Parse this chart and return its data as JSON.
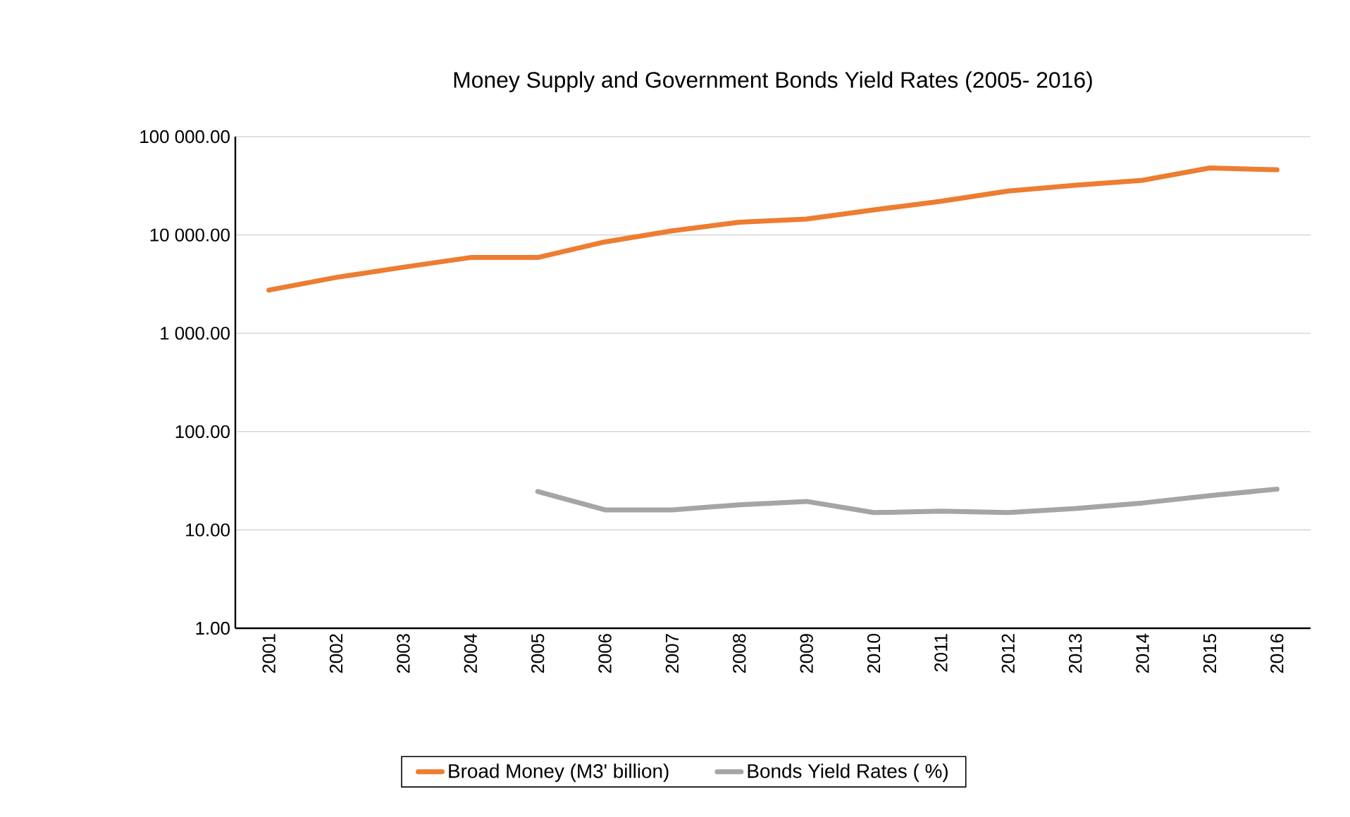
{
  "chart_data": {
    "type": "line",
    "title": "Money Supply and Government Bonds Yield Rates (2005- 2016)",
    "categories": [
      "2001",
      "2002",
      "2003",
      "2004",
      "2005",
      "2006",
      "2007",
      "2008",
      "2009",
      "2010",
      "2011",
      "2012",
      "2013",
      "2014",
      "2015",
      "2016"
    ],
    "series": [
      {
        "name": "Broad Money (M3' billion)",
        "color": "#ed7d31",
        "values": [
          2750,
          3700,
          4700,
          5900,
          5900,
          8500,
          11000,
          13500,
          14500,
          18000,
          22000,
          28000,
          32000,
          36000,
          48000,
          46000
        ]
      },
      {
        "name": "Bonds Yield Rates ( %)",
        "color": "#a5a5a5",
        "values": [
          null,
          null,
          null,
          null,
          24.6,
          16,
          16,
          18,
          19.5,
          15,
          15.5,
          15,
          16.5,
          18.8,
          22.3,
          26
        ]
      }
    ],
    "log": "y",
    "ylim": [
      1,
      100000
    ],
    "yticks": [
      {
        "value": 1,
        "label": "1.00"
      },
      {
        "value": 10,
        "label": "10.00"
      },
      {
        "value": 100,
        "label": "100.00"
      },
      {
        "value": 1000,
        "label": "1 000.00"
      },
      {
        "value": 10000,
        "label": "10 000.00"
      },
      {
        "value": 100000,
        "label": "100 000.00"
      }
    ],
    "grid": "y",
    "legend": "bottom",
    "marker": "none",
    "line_style": "solid"
  }
}
